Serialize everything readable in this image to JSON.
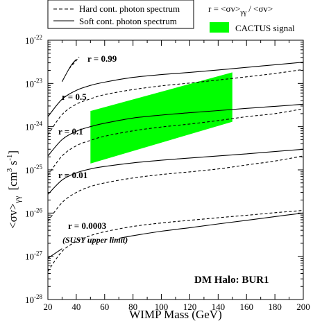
{
  "legend": {
    "hard": "Hard cont. photon spectrum",
    "soft": "Soft cont. photon spectrum",
    "ratio_lhs": "r = <σv>",
    "ratio_lhs_sub": "γγ",
    "ratio_rhs": "/ <σv>",
    "cactus": "CACTUS signal"
  },
  "colors": {
    "band": "#00ff00",
    "line": "#000000"
  },
  "curve_labels": {
    "r099": "r = 0.99",
    "r05": "r = 0.5",
    "r01": "r = 0.1",
    "r001": "r = 0.01",
    "r00003": "r = 0.0003",
    "susy": "(SUSY upper limit)"
  },
  "annotation": "DM Halo: BUR1",
  "chart_data": {
    "type": "line",
    "xlabel": "WIMP Mass (GeV)",
    "ylabel": "<σv>γγ [cm3 s-1]",
    "ylabel_parts": {
      "main": "<σv>",
      "sub": "γγ",
      "bracket_open": "[cm",
      "sup3": "3",
      " s": " s",
      "sup_minus1": "-1",
      "bracket_close": "]"
    },
    "xlim": [
      20,
      200
    ],
    "ylim": [
      1e-28,
      1e-22
    ],
    "yscale": "log",
    "xticks": [
      20,
      40,
      60,
      80,
      100,
      120,
      140,
      160,
      180,
      200
    ],
    "yticks": [
      1e-28,
      1e-27,
      1e-26,
      1e-25,
      1e-24,
      1e-23,
      1e-22
    ],
    "ytick_labels": [
      {
        "base": "10",
        "exp": "-28"
      },
      {
        "base": "10",
        "exp": "-27"
      },
      {
        "base": "10",
        "exp": "-26"
      },
      {
        "base": "10",
        "exp": "-25"
      },
      {
        "base": "10",
        "exp": "-24"
      },
      {
        "base": "10",
        "exp": "-23"
      },
      {
        "base": "10",
        "exp": "-22"
      }
    ],
    "series": [
      {
        "name": "Soft cont. photon spectrum",
        "r": 0.99,
        "style": "solid",
        "x": [
          30,
          36,
          40
        ],
        "y": [
          1.1e-23,
          2.5e-23,
          3.6e-23
        ]
      },
      {
        "name": "Hard cont. photon spectrum",
        "r": 0.99,
        "style": "dashed",
        "x": [
          35,
          39,
          42
        ],
        "y": [
          2.2e-23,
          3.1e-23,
          4.1e-23
        ]
      },
      {
        "name": "Soft cont. photon spectrum",
        "r": 0.5,
        "style": "solid",
        "x": [
          20,
          30,
          40,
          50,
          60,
          80,
          100,
          120,
          140,
          160,
          180,
          200
        ],
        "y": [
          1.7e-24,
          4.3e-24,
          6.9e-24,
          9e-24,
          1.07e-23,
          1.38e-23,
          1.6e-23,
          1.8e-23,
          2.05e-23,
          2.35e-23,
          2.7e-23,
          3.1e-23
        ]
      },
      {
        "name": "Hard cont. photon spectrum",
        "r": 0.5,
        "style": "dashed",
        "x": [
          20,
          30,
          40,
          50,
          60,
          80,
          100,
          120,
          140,
          160,
          180,
          200
        ],
        "y": [
          6.5e-25,
          1.9e-24,
          3.3e-24,
          4.4e-24,
          5.5e-24,
          7.2e-24,
          8.8e-24,
          1.02e-23,
          1.2e-23,
          1.42e-23,
          1.7e-23,
          2.1e-23
        ]
      },
      {
        "name": "Soft cont. photon spectrum",
        "r": 0.1,
        "style": "solid",
        "x": [
          20,
          30,
          40,
          50,
          60,
          80,
          100,
          120,
          140,
          160,
          180,
          200
        ],
        "y": [
          2.1e-25,
          5e-25,
          7.8e-25,
          1e-24,
          1.2e-24,
          1.58e-24,
          1.85e-24,
          2.1e-24,
          2.35e-24,
          2.65e-24,
          2.95e-24,
          3.3e-24
        ]
      },
      {
        "name": "Hard cont. photon spectrum",
        "r": 0.1,
        "style": "dashed",
        "x": [
          20,
          30,
          40,
          50,
          60,
          80,
          100,
          120,
          140,
          160,
          180,
          200
        ],
        "y": [
          7.5e-26,
          2.1e-25,
          3.6e-25,
          4.8e-25,
          6e-25,
          8e-25,
          9.8e-25,
          1.15e-24,
          1.38e-24,
          1.7e-24,
          2e-24,
          2.6e-24
        ]
      },
      {
        "name": "Soft cont. photon spectrum",
        "r": 0.01,
        "style": "solid",
        "x": [
          20,
          30,
          40,
          50,
          60,
          80,
          100,
          120,
          140,
          160,
          180,
          200
        ],
        "y": [
          2.7e-26,
          5.8e-26,
          8.5e-26,
          1.05e-25,
          1.2e-25,
          1.45e-25,
          1.67e-25,
          1.88e-25,
          2.1e-25,
          2.35e-25,
          2.65e-25,
          3e-25
        ]
      },
      {
        "name": "Hard cont. photon spectrum",
        "r": 0.01,
        "style": "dashed",
        "x": [
          20,
          30,
          40,
          50,
          60,
          80,
          100,
          120,
          140,
          160,
          180,
          200
        ],
        "y": [
          6.5e-27,
          1.75e-26,
          3e-26,
          4.1e-26,
          5e-26,
          6.5e-26,
          7.8e-26,
          9e-26,
          1.05e-25,
          1.3e-25,
          1.6e-25,
          2.1e-25
        ]
      },
      {
        "name": "Soft cont. photon spectrum",
        "r": 0.0003,
        "style": "solid",
        "x": [
          20,
          30
        ],
        "y": [
          9e-28,
          1.5e-27
        ]
      },
      {
        "name": "Soft cont. photon spectrum",
        "r": 0.0003,
        "style": "solid",
        "x": [
          70,
          80,
          100,
          120,
          140,
          160,
          180,
          200
        ],
        "y": [
          2.6e-27,
          3e-27,
          3.8e-27,
          4.6e-27,
          5.6e-27,
          6.8e-27,
          8.3e-27,
          1e-26
        ]
      },
      {
        "name": "Hard cont. photon spectrum",
        "r": 0.0003,
        "style": "dashed",
        "x": [
          20,
          30,
          40,
          50,
          60,
          80,
          100,
          120,
          140,
          160,
          180,
          200
        ],
        "y": [
          4.5e-28,
          1.3e-27,
          2.2e-27,
          3e-27,
          3.7e-27,
          4.9e-27,
          5.9e-27,
          6.8e-27,
          7.8e-27,
          8.9e-27,
          1.02e-26,
          1.15e-26
        ]
      }
    ],
    "band": {
      "name": "CACTUS signal",
      "x": [
        50,
        150
      ],
      "y_low": [
        1.4e-25,
        1.3e-24
      ],
      "y_high": [
        2.3e-24,
        1.8e-23
      ]
    }
  }
}
